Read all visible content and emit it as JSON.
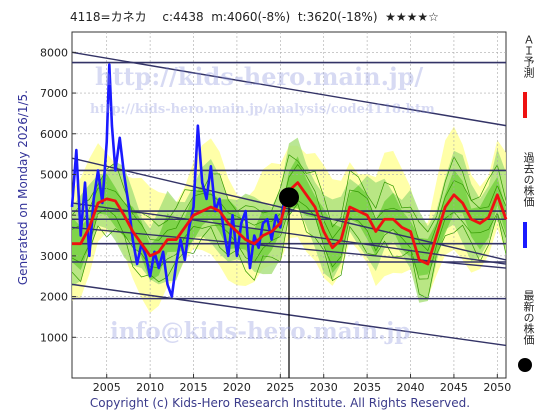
{
  "header": {
    "title": "4118=カネカ　 c:4438  m:4060(-8%)  t:3620(-18%)  ★★★★☆"
  },
  "side_labels": {
    "generated": "Generated on Monday 2026/1/5.",
    "ai_forecast": "ＡＩ予測",
    "past_price": "過去の株価",
    "latest_price": "最新の株価"
  },
  "watermarks": {
    "top": "http://kids-hero.main.jp/",
    "mid": "http://kids-hero.main.jp/analysis/code4118.htm",
    "bottom": "info@kids-hero.main.jp"
  },
  "footer": "Copyright (c) Kids-Hero Research Institute. All Rights Reserved.",
  "colors": {
    "past": "#1a1aff",
    "forecast": "#ee1111",
    "channel": "#333366",
    "band_green": "#66cc33",
    "band_yellow": "#ffff99",
    "grid": "#aaaaaa"
  },
  "chart_data": {
    "type": "line",
    "title": "4118=カネカ",
    "xlim": [
      2001,
      2051
    ],
    "ylim": [
      0,
      8500
    ],
    "xticks": [
      2005,
      2010,
      2015,
      2020,
      2025,
      2030,
      2035,
      2040,
      2045,
      2050
    ],
    "yticks": [
      1000,
      2000,
      3000,
      4000,
      5000,
      6000,
      7000,
      8000
    ],
    "current": {
      "x": 2026.0,
      "y": 4438
    },
    "series": [
      {
        "name": "過去の株価",
        "x": [
          2001,
          2001.5,
          2002,
          2002.5,
          2003,
          2003.5,
          2004,
          2004.5,
          2005,
          2005.3,
          2005.6,
          2006,
          2006.5,
          2007,
          2007.5,
          2008,
          2008.5,
          2009,
          2009.5,
          2010,
          2010.5,
          2011,
          2011.5,
          2012,
          2012.5,
          2013,
          2013.5,
          2014,
          2014.5,
          2015,
          2015.5,
          2016,
          2016.5,
          2017,
          2017.5,
          2018,
          2018.5,
          2019,
          2019.5,
          2020,
          2020.5,
          2021,
          2021.5,
          2022,
          2022.5,
          2023,
          2023.5,
          2024,
          2024.5,
          2025,
          2025.5
        ],
        "values": [
          4200,
          5600,
          3500,
          4800,
          3000,
          4400,
          5100,
          4300,
          5800,
          7700,
          6200,
          5100,
          5900,
          5000,
          4300,
          3400,
          2800,
          3300,
          3000,
          2500,
          3100,
          2700,
          3100,
          2300,
          2000,
          2800,
          3400,
          2900,
          3700,
          4200,
          6200,
          4800,
          4400,
          5200,
          4100,
          4400,
          3600,
          3000,
          4000,
          3000,
          3800,
          4100,
          2700,
          3500,
          3200,
          3800,
          3900,
          3400,
          4000,
          3700,
          4438
        ]
      },
      {
        "name": "ＡＩ予測",
        "x": [
          2001,
          2002,
          2003,
          2004,
          2005,
          2006,
          2007,
          2008,
          2009,
          2010,
          2011,
          2012,
          2013,
          2014,
          2015,
          2016,
          2017,
          2018,
          2019,
          2020,
          2021,
          2022,
          2023,
          2024,
          2025,
          2026,
          2027,
          2028,
          2029,
          2030,
          2031,
          2032,
          2033,
          2034,
          2035,
          2036,
          2037,
          2038,
          2039,
          2040,
          2041,
          2042,
          2043,
          2044,
          2045,
          2046,
          2047,
          2048,
          2049,
          2050,
          2051
        ],
        "values": [
          3300,
          3300,
          3700,
          4300,
          4400,
          4350,
          4000,
          3600,
          3300,
          3000,
          3100,
          3400,
          3400,
          3700,
          4000,
          4100,
          4200,
          4100,
          3800,
          3600,
          3400,
          3300,
          3500,
          3600,
          3800,
          4600,
          4800,
          4500,
          4200,
          3600,
          3200,
          3400,
          4200,
          4100,
          4000,
          3600,
          3900,
          3900,
          3700,
          3600,
          2900,
          2800,
          3500,
          4200,
          4500,
          4300,
          3900,
          3800,
          3950,
          4500,
          3900
        ]
      }
    ],
    "h_lines": [
      7750,
      5100,
      4100,
      3900,
      3300,
      2850,
      1950
    ],
    "channels": [
      {
        "from": [
          2001,
          8000
        ],
        "to": [
          2051,
          6200
        ]
      },
      {
        "from": [
          2001,
          5400
        ],
        "to": [
          2051,
          2900
        ]
      },
      {
        "from": [
          2001,
          4300
        ],
        "to": [
          2051,
          2800
        ]
      },
      {
        "from": [
          2001,
          3700
        ],
        "to": [
          2051,
          2700
        ]
      },
      {
        "from": [
          2001,
          2300
        ],
        "to": [
          2051,
          800
        ]
      }
    ]
  }
}
